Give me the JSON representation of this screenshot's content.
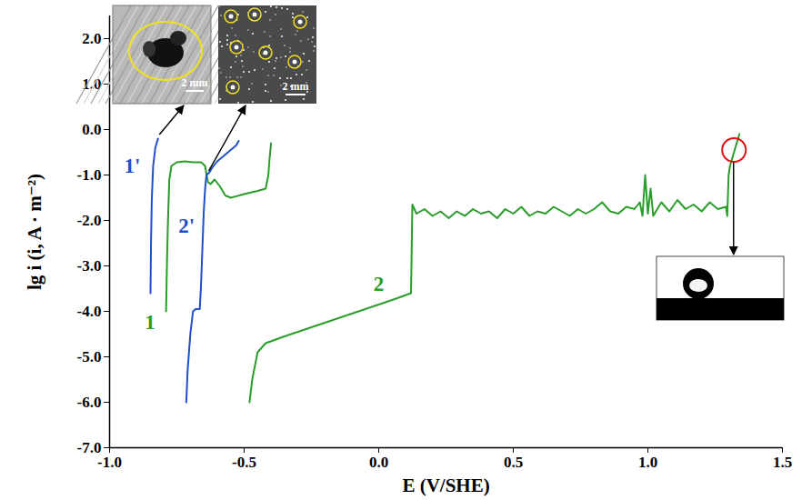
{
  "chart_data": {
    "type": "line",
    "x_label": "E (V/SHE)",
    "y_label": "lg i (i, A · m⁻²)",
    "xlim": [
      -1.0,
      1.5
    ],
    "xticks": [
      {
        "value": -1.0,
        "label": "-1.0"
      },
      {
        "value": -0.5,
        "label": "-0.5"
      },
      {
        "value": 0.0,
        "label": "0.0"
      },
      {
        "value": 0.5,
        "label": "0.5"
      },
      {
        "value": 1.0,
        "label": "1.0"
      },
      {
        "value": 1.5,
        "label": "1.5"
      }
    ],
    "ylim": [
      -7.0,
      2.5
    ],
    "yticks": [
      {
        "value": 2.0,
        "label": "2.0"
      },
      {
        "value": 1.0,
        "label": "1.0"
      },
      {
        "value": 0.0,
        "label": "0.0"
      },
      {
        "value": -1.0,
        "label": "-1.0"
      },
      {
        "value": -2.0,
        "label": "-2.0"
      },
      {
        "value": -3.0,
        "label": "-3.0"
      },
      {
        "value": -4.0,
        "label": "-4.0"
      },
      {
        "value": -5.0,
        "label": "-5.0"
      },
      {
        "value": -6.0,
        "label": "-6.0"
      },
      {
        "value": -7.0,
        "label": "-7.0"
      }
    ],
    "grid": false,
    "series": [
      {
        "name": "1'",
        "color": "#1f4fc8",
        "x": [
          -0.848,
          -0.846,
          -0.843,
          -0.838,
          -0.83,
          -0.82
        ],
        "values": [
          -3.6,
          -2.5,
          -1.5,
          -0.8,
          -0.4,
          -0.2
        ]
      },
      {
        "name": "1",
        "color": "#2a9d2a",
        "x": [
          -0.79,
          -0.787,
          -0.783,
          -0.778,
          -0.77,
          -0.75,
          -0.72,
          -0.69,
          -0.66,
          -0.645,
          -0.635,
          -0.625,
          -0.61,
          -0.59,
          -0.57,
          -0.55,
          -0.5,
          -0.45,
          -0.42,
          -0.41,
          -0.405,
          -0.4
        ],
        "values": [
          -4.0,
          -3.0,
          -2.0,
          -1.1,
          -0.8,
          -0.72,
          -0.7,
          -0.72,
          -0.72,
          -0.8,
          -1.15,
          -1.2,
          -1.1,
          -1.25,
          -1.45,
          -1.5,
          -1.42,
          -1.35,
          -1.3,
          -1.0,
          -0.6,
          -0.3
        ]
      },
      {
        "name": "2'",
        "color": "#1f4fc8",
        "x": [
          -0.715,
          -0.71,
          -0.7,
          -0.69,
          -0.68,
          -0.665,
          -0.66,
          -0.655,
          -0.65,
          -0.645,
          -0.64,
          -0.63,
          -0.62,
          -0.6,
          -0.58,
          -0.56,
          -0.54,
          -0.53,
          -0.52
        ],
        "values": [
          -6.0,
          -5.3,
          -4.5,
          -4.0,
          -3.95,
          -3.95,
          -3.4,
          -2.6,
          -1.8,
          -1.3,
          -1.0,
          -0.95,
          -0.85,
          -0.7,
          -0.6,
          -0.5,
          -0.4,
          -0.35,
          -0.25
        ]
      },
      {
        "name": "2",
        "color": "#2a9d2a",
        "x": [
          -0.48,
          -0.47,
          -0.45,
          -0.42,
          -0.35,
          -0.3,
          -0.2,
          -0.1,
          0.0,
          0.05,
          0.12,
          0.125,
          0.14,
          0.17,
          0.2,
          0.23,
          0.26,
          0.29,
          0.32,
          0.35,
          0.38,
          0.41,
          0.44,
          0.47,
          0.5,
          0.53,
          0.56,
          0.59,
          0.62,
          0.65,
          0.68,
          0.71,
          0.74,
          0.77,
          0.8,
          0.83,
          0.86,
          0.89,
          0.92,
          0.95,
          0.97,
          0.98,
          0.99,
          1.0,
          1.01,
          1.02,
          1.05,
          1.08,
          1.11,
          1.14,
          1.17,
          1.2,
          1.23,
          1.26,
          1.29,
          1.295,
          1.3,
          1.305,
          1.31,
          1.32,
          1.33,
          1.34
        ],
        "values": [
          -6.0,
          -5.5,
          -4.9,
          -4.7,
          -4.55,
          -4.45,
          -4.25,
          -4.05,
          -3.85,
          -3.75,
          -3.6,
          -1.65,
          -1.85,
          -1.75,
          -1.9,
          -1.8,
          -1.95,
          -1.8,
          -1.9,
          -1.75,
          -1.85,
          -1.8,
          -1.95,
          -1.75,
          -1.85,
          -1.7,
          -1.9,
          -1.8,
          -1.85,
          -1.7,
          -1.8,
          -1.9,
          -1.75,
          -1.85,
          -1.75,
          -1.6,
          -1.8,
          -1.85,
          -1.7,
          -1.75,
          -1.6,
          -1.9,
          -1.0,
          -1.85,
          -1.3,
          -1.9,
          -1.6,
          -1.8,
          -1.55,
          -1.75,
          -1.65,
          -1.8,
          -1.6,
          -1.75,
          -1.7,
          -1.9,
          -1.0,
          -0.8,
          -0.7,
          -0.5,
          -0.3,
          -0.1
        ]
      }
    ],
    "highlight": {
      "x": 1.32,
      "y": -0.45,
      "color": "#e01010"
    },
    "inset_scale_bars": [
      "2 mm",
      "2 mm"
    ]
  }
}
